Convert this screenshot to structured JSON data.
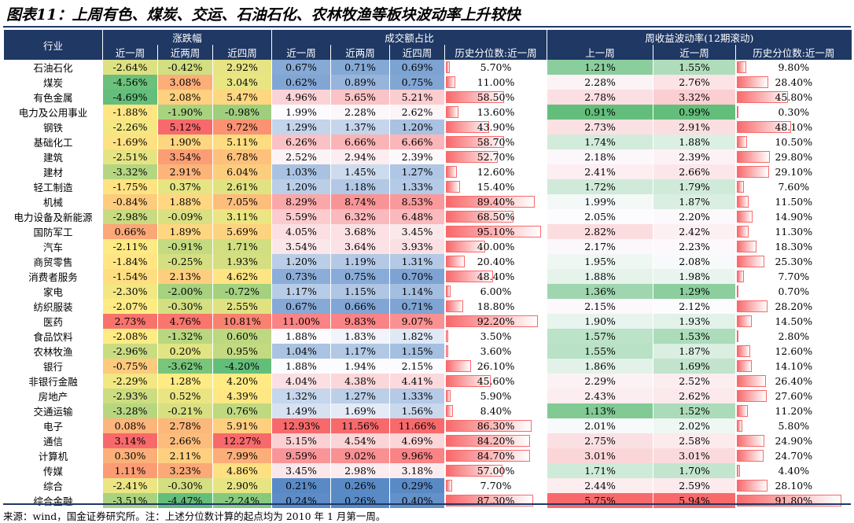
{
  "title": "图表11：上周有色、煤炭、交运、石油石化、农林牧渔等板块波动率上升较快",
  "header": {
    "groups": [
      "行业",
      "涨跌幅",
      "成交额占比",
      "周收益波动率(12期滚动)"
    ],
    "columns": [
      "近一周",
      "近两周",
      "近四周",
      "近一周",
      "近两周",
      "近四周",
      "历史分位数:近一周",
      "上一周",
      "近一周",
      "历史分位数:近一周"
    ]
  },
  "table": {
    "rows": [
      [
        "石油石化",
        "-2.64%",
        "-0.42%",
        "2.92%",
        "0.67%",
        "0.71%",
        "0.69%",
        "5.70%",
        "1.21%",
        "1.55%",
        "9.80%"
      ],
      [
        "煤炭",
        "-4.56%",
        "3.08%",
        "3.04%",
        "0.62%",
        "0.89%",
        "0.75%",
        "11.00%",
        "2.28%",
        "2.76%",
        "28.40%"
      ],
      [
        "有色金属",
        "-4.69%",
        "2.08%",
        "5.47%",
        "4.96%",
        "5.65%",
        "5.21%",
        "58.50%",
        "2.78%",
        "3.32%",
        "45.80%"
      ],
      [
        "电力及公用事业",
        "-1.88%",
        "-1.90%",
        "-0.98%",
        "1.99%",
        "2.28%",
        "2.62%",
        "13.60%",
        "0.91%",
        "0.99%",
        "0.30%"
      ],
      [
        "钢铁",
        "-2.26%",
        "5.12%",
        "9.72%",
        "1.29%",
        "1.37%",
        "1.20%",
        "43.90%",
        "2.73%",
        "2.91%",
        "48.10%"
      ],
      [
        "基础化工",
        "-1.69%",
        "1.90%",
        "5.11%",
        "6.26%",
        "6.66%",
        "6.66%",
        "58.70%",
        "1.74%",
        "1.88%",
        "10.50%"
      ],
      [
        "建筑",
        "-2.51%",
        "3.54%",
        "6.78%",
        "2.52%",
        "2.94%",
        "2.39%",
        "52.70%",
        "2.18%",
        "2.39%",
        "29.80%"
      ],
      [
        "建材",
        "-3.32%",
        "2.91%",
        "6.04%",
        "1.03%",
        "1.45%",
        "1.27%",
        "12.60%",
        "2.41%",
        "2.66%",
        "29.10%"
      ],
      [
        "轻工制造",
        "-1.75%",
        "0.37%",
        "2.61%",
        "1.20%",
        "1.18%",
        "1.33%",
        "15.40%",
        "1.72%",
        "1.79%",
        "7.60%"
      ],
      [
        "机械",
        "-0.84%",
        "1.88%",
        "7.05%",
        "8.29%",
        "8.74%",
        "8.53%",
        "89.40%",
        "1.99%",
        "1.87%",
        "11.50%"
      ],
      [
        "电力设备及新能源",
        "-2.98%",
        "-0.09%",
        "3.11%",
        "5.59%",
        "6.32%",
        "6.48%",
        "68.50%",
        "2.05%",
        "2.20%",
        "14.90%"
      ],
      [
        "国防军工",
        "0.66%",
        "1.89%",
        "5.69%",
        "4.05%",
        "3.68%",
        "3.45%",
        "95.10%",
        "2.82%",
        "2.42%",
        "11.30%"
      ],
      [
        "汽车",
        "-2.11%",
        "-0.91%",
        "1.71%",
        "3.54%",
        "3.64%",
        "3.93%",
        "40.00%",
        "2.17%",
        "2.23%",
        "18.30%"
      ],
      [
        "商贸零售",
        "-1.84%",
        "-0.25%",
        "1.93%",
        "1.20%",
        "1.19%",
        "1.31%",
        "20.40%",
        "1.95%",
        "2.08%",
        "25.30%"
      ],
      [
        "消费者服务",
        "-1.54%",
        "2.13%",
        "4.62%",
        "0.73%",
        "0.75%",
        "0.70%",
        "48.40%",
        "1.88%",
        "1.98%",
        "7.70%"
      ],
      [
        "家电",
        "-2.30%",
        "-2.00%",
        "-0.72%",
        "1.17%",
        "1.15%",
        "1.14%",
        "6.00%",
        "1.36%",
        "1.29%",
        "0.70%"
      ],
      [
        "纺织服装",
        "-2.07%",
        "-0.30%",
        "2.55%",
        "0.67%",
        "0.66%",
        "0.71%",
        "18.80%",
        "2.15%",
        "2.12%",
        "28.20%"
      ],
      [
        "医药",
        "2.73%",
        "4.76%",
        "10.81%",
        "11.00%",
        "9.83%",
        "9.07%",
        "92.20%",
        "1.90%",
        "1.93%",
        "14.50%"
      ],
      [
        "食品饮料",
        "-2.08%",
        "-1.32%",
        "0.60%",
        "1.88%",
        "1.83%",
        "1.82%",
        "3.50%",
        "1.57%",
        "1.53%",
        "2.80%"
      ],
      [
        "农林牧渔",
        "-2.96%",
        "0.20%",
        "0.95%",
        "1.04%",
        "1.17%",
        "1.15%",
        "3.60%",
        "1.55%",
        "1.87%",
        "12.60%"
      ],
      [
        "银行",
        "-0.75%",
        "-3.62%",
        "-4.20%",
        "1.88%",
        "1.94%",
        "2.15%",
        "26.10%",
        "1.86%",
        "1.69%",
        "14.10%"
      ],
      [
        "非银行金融",
        "-2.29%",
        "1.28%",
        "4.20%",
        "4.04%",
        "4.38%",
        "4.41%",
        "45.60%",
        "2.29%",
        "2.52%",
        "26.40%"
      ],
      [
        "房地产",
        "-2.93%",
        "0.52%",
        "4.39%",
        "1.32%",
        "1.27%",
        "1.33%",
        "5.90%",
        "2.43%",
        "2.62%",
        "27.60%"
      ],
      [
        "交通运输",
        "-3.28%",
        "-0.21%",
        "0.76%",
        "1.49%",
        "1.69%",
        "1.56%",
        "8.40%",
        "1.13%",
        "1.52%",
        "11.20%"
      ],
      [
        "电子",
        "0.08%",
        "2.78%",
        "5.91%",
        "12.93%",
        "11.56%",
        "11.66%",
        "86.30%",
        "2.01%",
        "2.02%",
        "5.80%"
      ],
      [
        "通信",
        "3.14%",
        "2.66%",
        "12.27%",
        "5.15%",
        "4.54%",
        "4.69%",
        "84.20%",
        "2.75%",
        "2.58%",
        "24.90%"
      ],
      [
        "计算机",
        "0.30%",
        "2.11%",
        "7.99%",
        "9.59%",
        "9.02%",
        "9.96%",
        "84.70%",
        "3.01%",
        "3.01%",
        "24.70%"
      ],
      [
        "传媒",
        "1.11%",
        "3.23%",
        "4.86%",
        "3.45%",
        "2.98%",
        "3.18%",
        "57.00%",
        "1.71%",
        "1.70%",
        "4.40%"
      ],
      [
        "综合",
        "-2.41%",
        "-0.30%",
        "2.90%",
        "0.21%",
        "0.26%",
        "0.29%",
        "7.70%",
        "2.44%",
        "2.59%",
        "28.10%"
      ],
      [
        "综合金融",
        "-3.51%",
        "-4.47%",
        "-2.24%",
        "0.24%",
        "0.26%",
        "0.40%",
        "87.30%",
        "5.75%",
        "5.94%",
        "91.80%"
      ]
    ]
  },
  "footer": "来源：wind，国金证券研究所。注：上述分位数计算的起点均为 2010 年 1 月第一周。"
}
